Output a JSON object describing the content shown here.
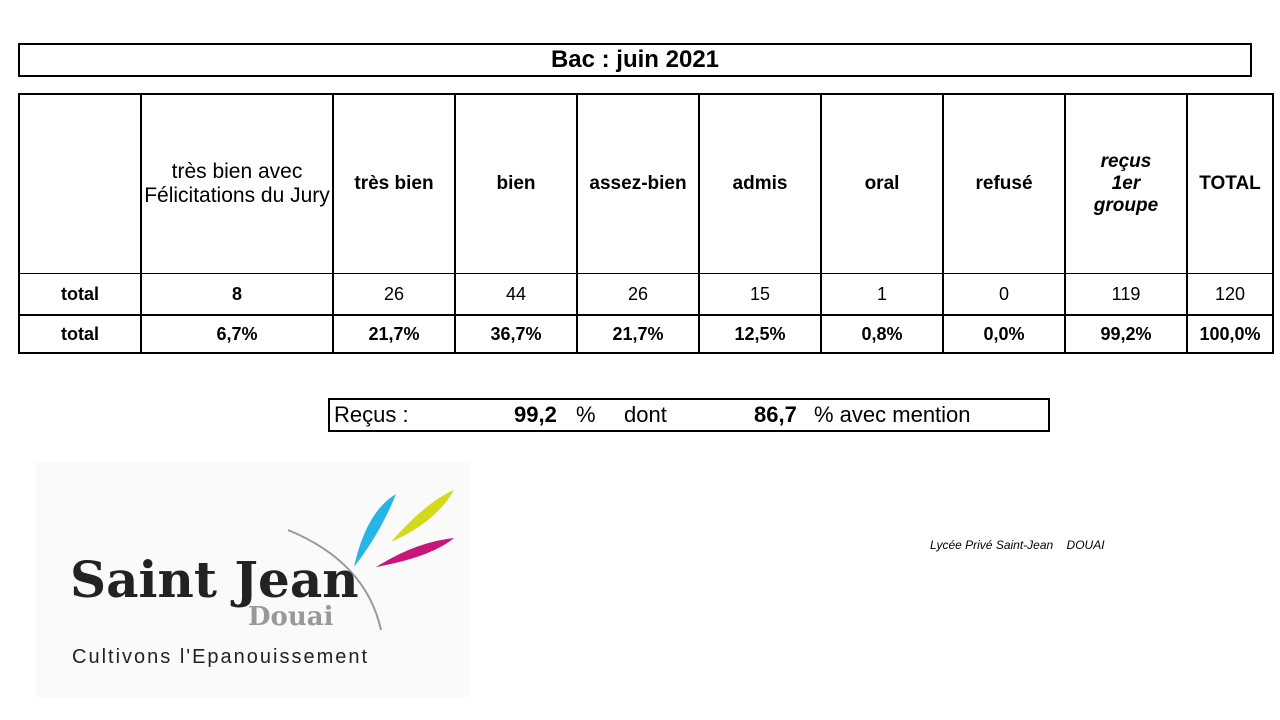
{
  "title": "Bac : juin 2021",
  "table": {
    "headers": [
      "très bien avec Félicitations du Jury",
      "très bien",
      "bien",
      "assez-bien",
      "admis",
      "oral",
      "refusé",
      "reçus 1er groupe",
      "TOTAL"
    ],
    "rows": [
      {
        "label": "total",
        "cells": [
          8,
          26,
          44,
          26,
          15,
          1,
          0,
          119,
          120
        ]
      },
      {
        "label": "total",
        "cells": [
          "6,7%",
          "21,7%",
          "36,7%",
          "21,7%",
          "12,5%",
          "0,8%",
          "0,0%",
          "99,2%",
          "100,0%"
        ]
      }
    ]
  },
  "summary": {
    "received_label": "Reçus :",
    "received_value": "99,2",
    "received_unit": "%",
    "connector": "dont",
    "mention_value": "86,7",
    "mention_text": "% avec mention"
  },
  "logo": {
    "name": "Saint Jean",
    "city": "Douai",
    "tagline": "Cultivons l'Epanouissement"
  },
  "footer": {
    "school": "Lycée Privé Saint-Jean",
    "city": "DOUAI"
  }
}
